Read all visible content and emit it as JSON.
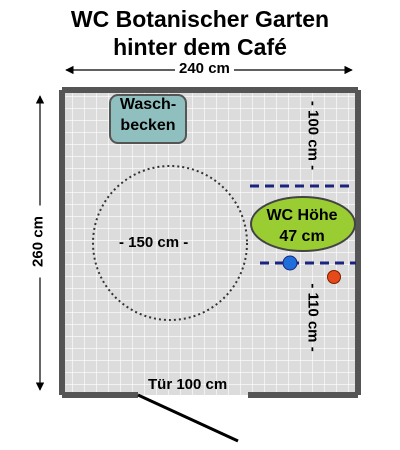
{
  "title": {
    "line1": "WC Botanischer Garten",
    "line2": "hinter dem Café"
  },
  "dimensions": {
    "width": "240 cm",
    "height": "260 cm",
    "upper_right": "- 100 cm -",
    "lower_right": "- 110 cm -",
    "door": "Tür 100 cm",
    "turning_circle": "- 150 cm -"
  },
  "sink": {
    "line1": "Wasch-",
    "line2": "becken"
  },
  "toilet": {
    "line1": "WC Höhe",
    "line2": "47 cm"
  },
  "colors": {
    "floor": "#dcdcdc",
    "walls": "#555555",
    "sink": "#8fbfbf",
    "toilet": "#9acd32",
    "dashed_lines": "#1a237e",
    "blue_marker": "#1e6fd9",
    "red_marker": "#e64a19"
  }
}
